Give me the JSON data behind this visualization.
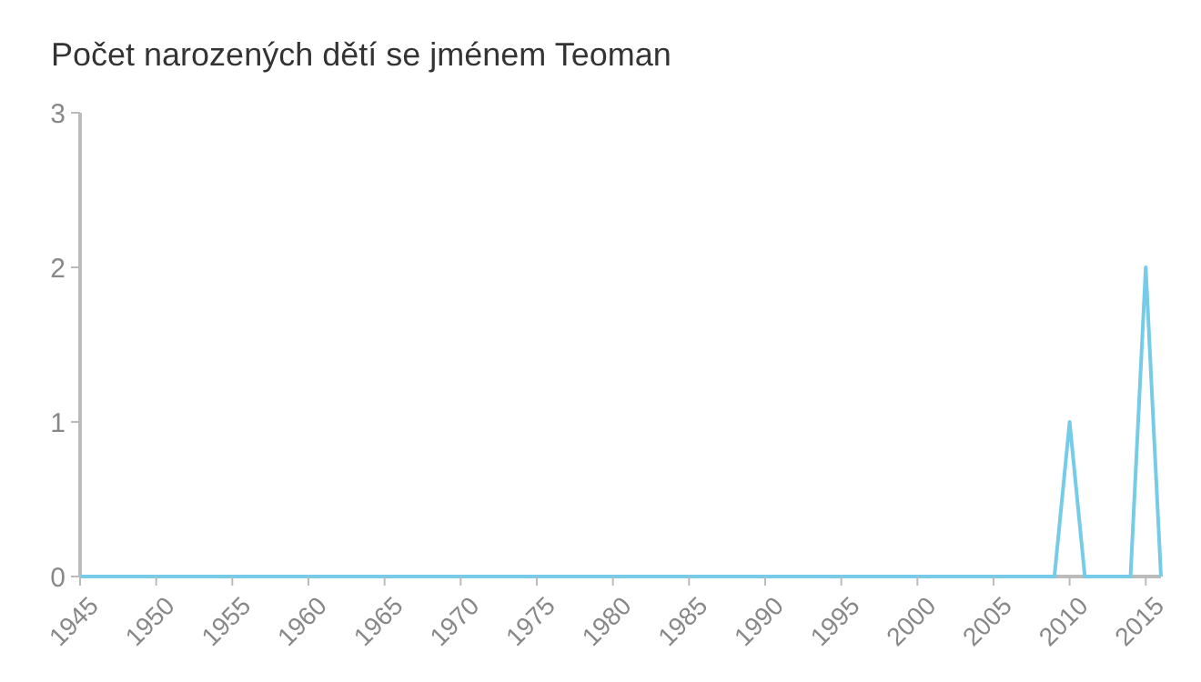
{
  "chart_data": {
    "type": "line",
    "title": "Počet narozených dětí se jménem Teoman",
    "x": [
      1945,
      2009,
      2010,
      2011,
      2014,
      2015,
      2016
    ],
    "series": [
      {
        "color": "#75cbe8",
        "values": [
          0,
          0,
          1,
          0,
          0,
          2,
          0
        ]
      }
    ],
    "xlim": [
      1945,
      2016
    ],
    "xticks": [
      1945,
      1950,
      1955,
      1960,
      1965,
      1970,
      1975,
      1980,
      1985,
      1990,
      1995,
      2000,
      2005,
      2010,
      2015
    ],
    "ylim": [
      0,
      3
    ],
    "yticks": [
      0,
      1,
      2,
      3
    ],
    "grid": false,
    "marker": "none",
    "line_style": "solid"
  }
}
